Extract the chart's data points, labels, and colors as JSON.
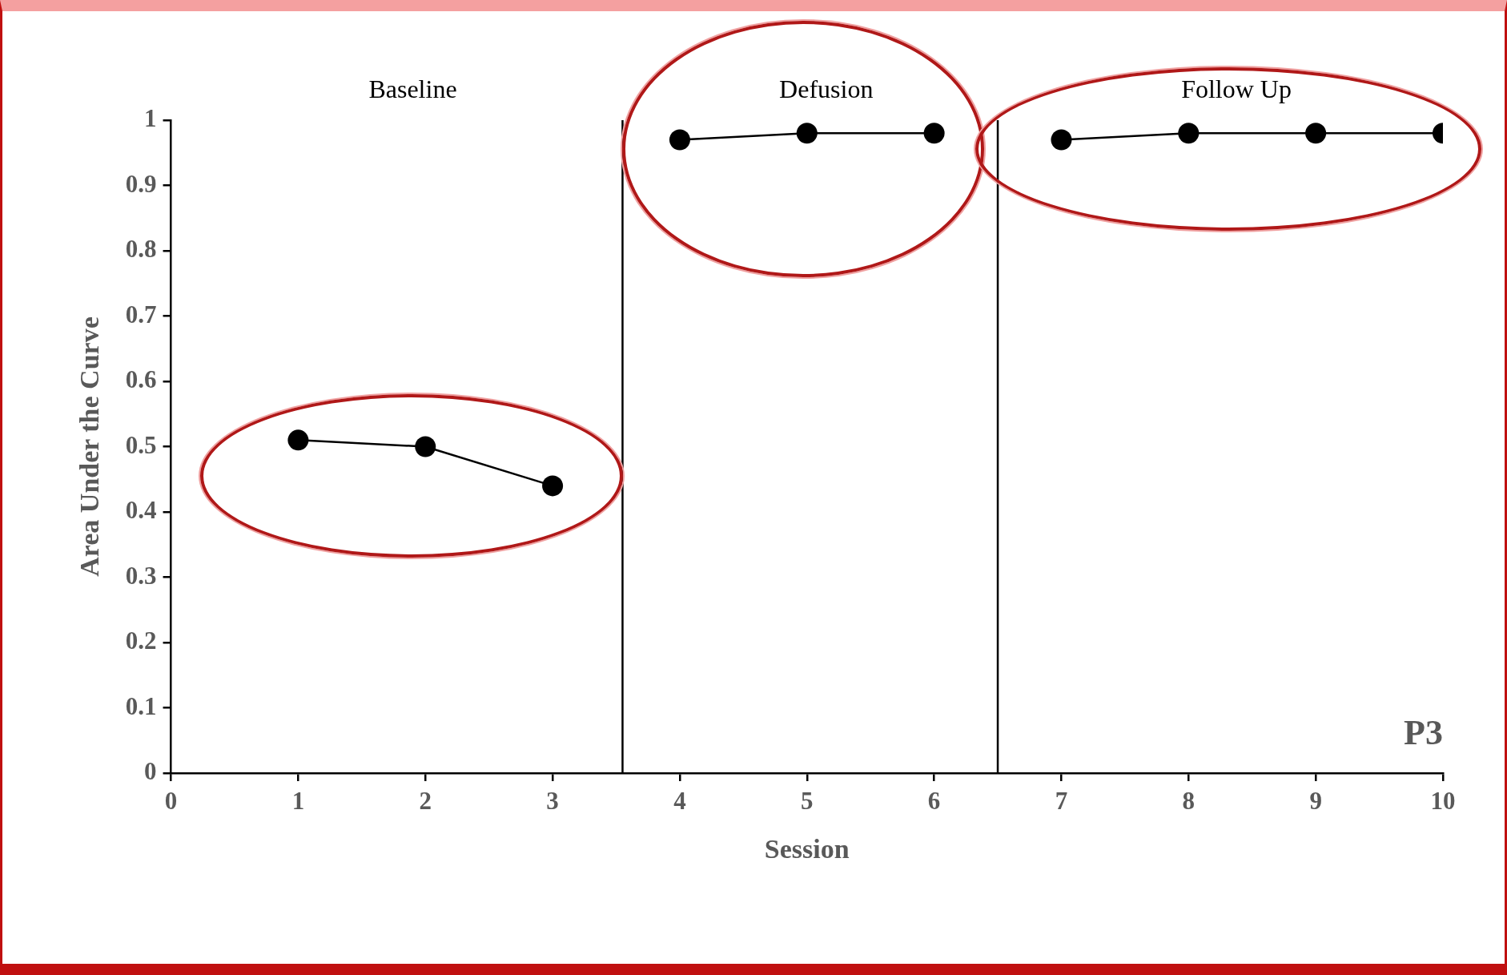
{
  "chart_data": {
    "type": "line",
    "xlabel": "Session",
    "ylabel": "Area Under the Curve",
    "series": [
      {
        "color": "#000000",
        "x": [
          1,
          2,
          3
        ],
        "values": [
          0.51,
          0.5,
          0.44
        ]
      },
      {
        "color": "#000000",
        "x": [
          4,
          5,
          6
        ],
        "values": [
          0.97,
          0.98,
          0.98
        ]
      },
      {
        "color": "#000000",
        "x": [
          7,
          8,
          9,
          10
        ],
        "values": [
          0.97,
          0.98,
          0.98,
          0.98
        ]
      }
    ],
    "xlim": [
      0,
      10
    ],
    "xticks": [
      0,
      1,
      2,
      3,
      4,
      5,
      6,
      7,
      8,
      9,
      10
    ],
    "ylim": [
      0,
      1
    ],
    "yticks": [
      0,
      0.1,
      0.2,
      0.3,
      0.4,
      0.5,
      0.6,
      0.7,
      0.8,
      0.9,
      1
    ],
    "ref_lines": [
      {
        "axis": "x",
        "value": 3.55,
        "color": "#000000"
      },
      {
        "axis": "x",
        "value": 6.5,
        "color": "#000000"
      }
    ],
    "annotations": [
      "Baseline",
      "Defusion",
      "Follow Up",
      "P3"
    ],
    "grid": false,
    "legend": false,
    "marker": "circle",
    "line_style": "solid"
  }
}
